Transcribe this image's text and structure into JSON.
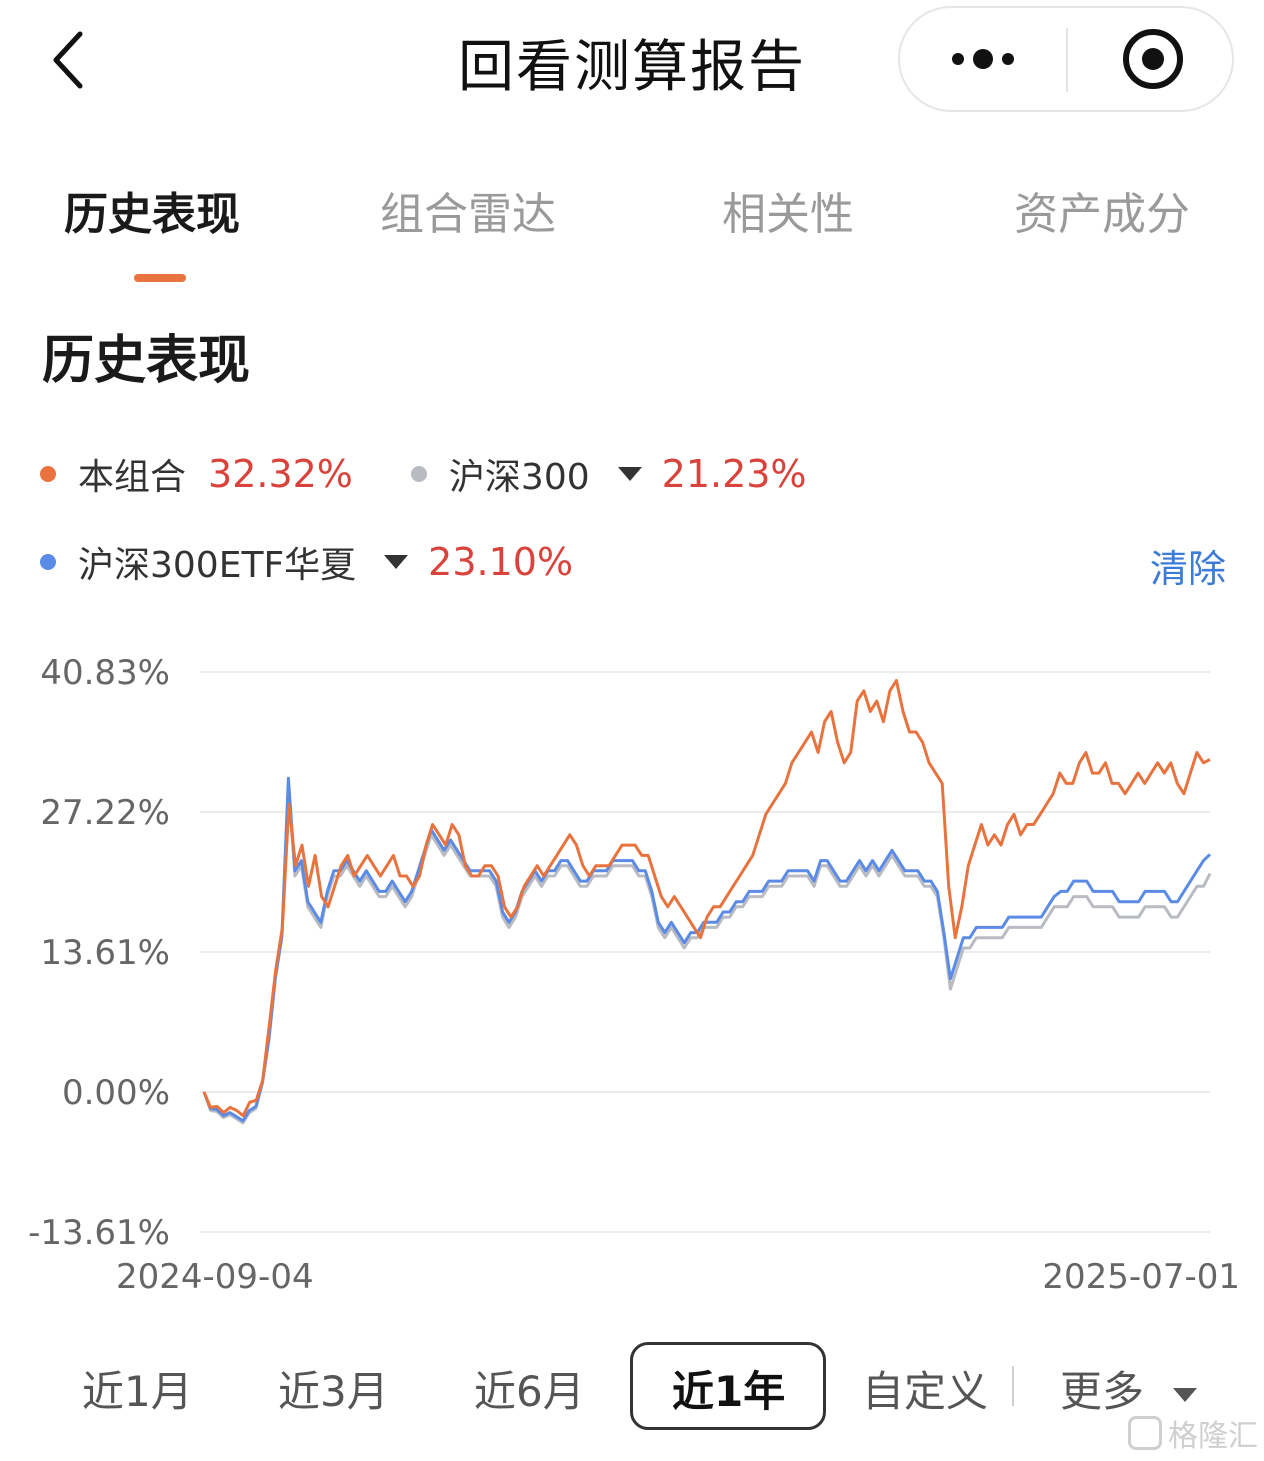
{
  "nav": {
    "title": "回看测算报告",
    "back_icon": "chevron-left-icon",
    "more_icon": "more-dots-icon",
    "close_icon": "target-icon"
  },
  "tabs": [
    {
      "label": "历史表现",
      "active": true
    },
    {
      "label": "组合雷达",
      "active": false
    },
    {
      "label": "相关性",
      "active": false
    },
    {
      "label": "资产成分",
      "active": false
    }
  ],
  "section": {
    "title": "历史表现"
  },
  "legend": {
    "portfolio": {
      "name": "本组合",
      "value": "32.32%",
      "color": "#e8733e"
    },
    "bench1": {
      "name": "沪深300",
      "value": "21.23%",
      "color": "#b8bcc2"
    },
    "bench2": {
      "name": "沪深300ETF华夏",
      "value": "23.10%",
      "color": "#5b8be6"
    },
    "clear_label": "清除"
  },
  "chart_data": {
    "type": "line",
    "y_ticks": [
      "40.83%",
      "27.22%",
      "13.61%",
      "0.00%",
      "-13.61%"
    ],
    "ylim": [
      -13.61,
      40.83
    ],
    "x_start_label": "2024-09-04",
    "x_end_label": "2025-07-01",
    "series": [
      {
        "name": "本组合",
        "color": "#e8733e",
        "values": [
          0,
          -1.5,
          -1.4,
          -2.0,
          -1.5,
          -1.8,
          -2.3,
          -1.0,
          -0.8,
          1.2,
          6.5,
          12,
          16,
          28,
          22,
          24,
          20,
          23,
          19,
          18,
          20,
          22,
          23,
          21,
          22,
          23,
          22,
          21,
          22,
          23,
          21,
          21,
          20,
          21,
          24,
          26,
          25,
          24,
          26,
          25,
          22,
          21,
          21,
          22,
          22,
          21,
          18,
          17,
          18,
          20,
          21,
          22,
          21,
          22,
          23,
          24,
          25,
          24,
          22,
          21,
          22,
          22,
          22,
          23,
          24,
          24,
          24,
          23,
          23,
          21,
          19,
          18,
          19,
          18,
          17,
          16,
          15,
          17,
          18,
          18,
          19,
          20,
          21,
          22,
          23,
          25,
          27,
          28,
          29,
          30,
          32,
          33,
          34,
          35,
          33,
          36,
          37,
          34,
          32,
          33,
          38,
          39,
          37,
          38,
          36,
          39,
          40,
          37,
          35,
          35,
          34,
          32,
          31,
          30,
          20,
          15,
          18,
          22,
          24,
          26,
          24,
          25,
          24,
          26,
          27,
          25,
          26,
          26,
          27,
          28,
          29,
          31,
          30,
          30,
          32,
          33,
          31,
          31,
          32,
          30,
          30,
          29,
          30,
          31,
          30,
          31,
          32,
          31,
          32,
          30,
          29,
          31,
          33,
          32,
          32.32
        ]
      },
      {
        "name": "沪深300",
        "color": "#b8bcc2",
        "values": [
          0,
          -1.8,
          -1.9,
          -2.5,
          -2.2,
          -2.6,
          -3.0,
          -2.0,
          -1.6,
          0.8,
          5,
          11,
          15,
          30,
          21,
          22,
          18,
          17,
          16,
          19,
          21,
          21,
          22,
          21,
          20,
          21,
          20,
          19,
          19,
          20,
          19,
          18,
          19,
          21,
          23,
          25,
          24,
          23,
          24,
          23,
          22,
          21,
          21,
          21,
          21,
          20,
          17,
          16,
          17,
          19,
          20,
          21,
          20,
          21,
          21,
          22,
          22,
          21,
          20,
          20,
          21,
          21,
          21,
          22,
          22,
          22,
          22,
          21,
          21,
          19,
          16,
          15,
          16,
          15,
          14,
          15,
          15,
          16,
          16,
          16,
          17,
          17,
          18,
          18,
          19,
          19,
          19,
          20,
          20,
          20,
          21,
          21,
          21,
          21,
          20,
          22,
          22,
          21,
          20,
          20,
          21,
          22,
          21,
          22,
          21,
          22,
          23,
          22,
          21,
          21,
          21,
          20,
          20,
          19,
          15,
          10,
          12,
          14,
          14,
          15,
          15,
          15,
          15,
          15,
          16,
          16,
          16,
          16,
          16,
          16,
          17,
          18,
          18,
          18,
          19,
          19,
          19,
          18,
          18,
          18,
          18,
          17,
          17,
          17,
          17,
          18,
          18,
          18,
          18,
          17,
          17,
          18,
          19,
          20,
          20,
          21.23
        ]
      },
      {
        "name": "沪深300ETF华夏",
        "color": "#5b8be6",
        "values": [
          0,
          -1.6,
          -1.7,
          -2.3,
          -2.0,
          -2.4,
          -2.8,
          -1.8,
          -1.4,
          1.0,
          5.2,
          11.2,
          15.2,
          30.5,
          21.5,
          22.5,
          18.5,
          17.5,
          16.5,
          19.5,
          21.5,
          21.5,
          22.5,
          21.5,
          20.5,
          21.5,
          20.5,
          19.5,
          19.5,
          20.5,
          19.5,
          18.5,
          19.5,
          21.5,
          23.5,
          25.5,
          24.5,
          23.5,
          24.5,
          23.5,
          22.5,
          21.5,
          21.5,
          21.5,
          21.5,
          20.5,
          17.5,
          16.5,
          17.5,
          19.5,
          20.5,
          21.5,
          20.5,
          21.5,
          21.5,
          22.5,
          22.5,
          21.5,
          20.5,
          20.5,
          21.5,
          21.5,
          21.5,
          22.5,
          22.5,
          22.5,
          22.5,
          21.5,
          21.5,
          19.5,
          16.5,
          15.5,
          16.5,
          15.5,
          14.5,
          15.5,
          15.5,
          16.5,
          16.5,
          16.5,
          17.5,
          17.5,
          18.5,
          18.5,
          19.5,
          19.5,
          19.5,
          20.5,
          20.5,
          20.5,
          21.5,
          21.5,
          21.5,
          21.5,
          20.5,
          22.5,
          22.5,
          21.5,
          20.5,
          20.5,
          21.5,
          22.5,
          21.5,
          22.5,
          21.5,
          22.5,
          23.5,
          22.5,
          21.5,
          21.5,
          21.5,
          20.5,
          20.5,
          19.5,
          15.5,
          11,
          13,
          15,
          15,
          16,
          16,
          16,
          16,
          16,
          17,
          17,
          17,
          17,
          17,
          17,
          18,
          19,
          19.5,
          19.5,
          20.5,
          20.5,
          20.5,
          19.5,
          19.5,
          19.5,
          19.5,
          18.5,
          18.5,
          18.5,
          18.5,
          19.5,
          19.5,
          19.5,
          19.5,
          18.5,
          18.5,
          19.5,
          20.5,
          21.5,
          22.5,
          23.1
        ]
      }
    ]
  },
  "ranges": [
    {
      "label": "近1月",
      "selected": false
    },
    {
      "label": "近3月",
      "selected": false
    },
    {
      "label": "近6月",
      "selected": false
    },
    {
      "label": "近1年",
      "selected": true
    },
    {
      "label": "自定义",
      "selected": false
    }
  ],
  "more": {
    "label": "更多"
  },
  "watermark": {
    "label": "格隆汇"
  }
}
